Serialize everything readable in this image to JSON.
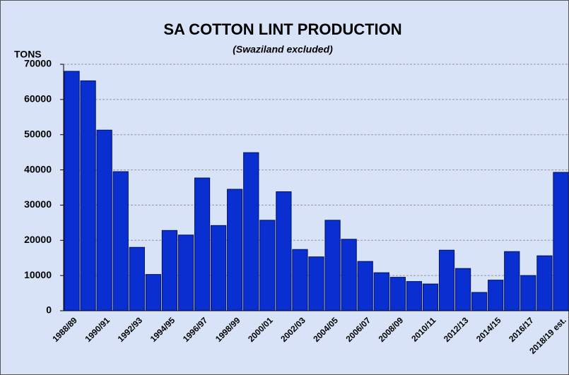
{
  "chart_data": {
    "type": "bar",
    "title": "SA COTTON LINT PRODUCTION",
    "subtitle": "(Swaziland excluded)",
    "y_label": "TONS",
    "categories": [
      "1988/89",
      null,
      "1990/91",
      null,
      "1992/93",
      null,
      "1994/95",
      null,
      "1996/97",
      null,
      "1998/99",
      null,
      "2000/01",
      null,
      "2002/03",
      null,
      "2004/05",
      null,
      "2006/07",
      null,
      "2008/09",
      null,
      "2010/11",
      null,
      "2012/13",
      null,
      "2014/15",
      null,
      "2016/17",
      null,
      "2018/19 est."
    ],
    "values": [
      68000,
      65300,
      51300,
      39500,
      18000,
      10300,
      22800,
      21500,
      37700,
      24200,
      34500,
      44900,
      25700,
      33800,
      17400,
      15300,
      25700,
      20300,
      14000,
      10800,
      9500,
      8300,
      7600,
      17200,
      12000,
      5200,
      8700,
      16800,
      10000,
      15600,
      39300
    ],
    "color": "#0a2fd0",
    "ylim": [
      0,
      70000
    ],
    "yticks": [
      0,
      10000,
      20000,
      30000,
      40000,
      50000,
      60000,
      70000
    ],
    "grid": true
  }
}
